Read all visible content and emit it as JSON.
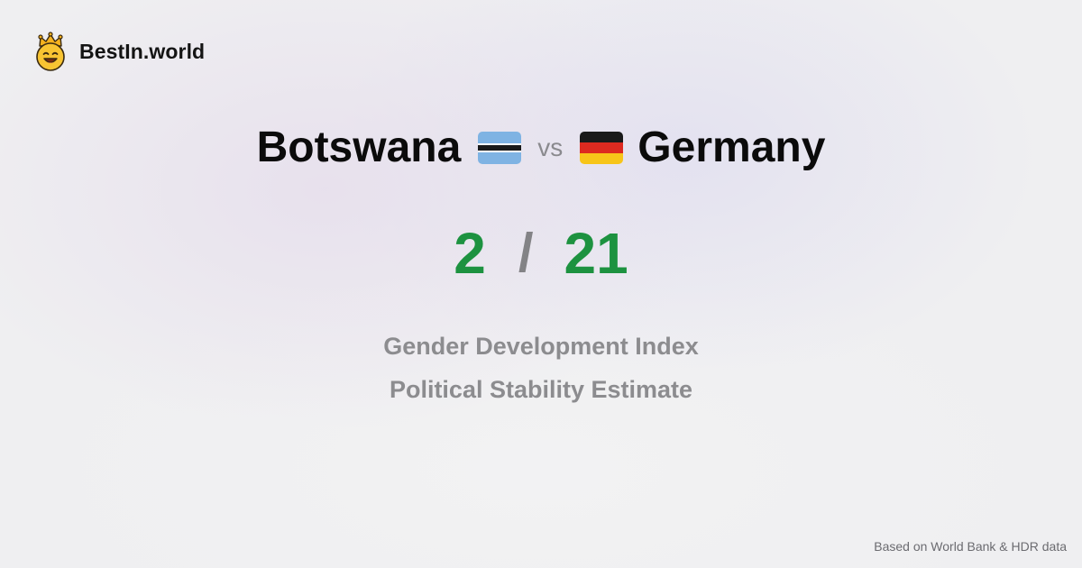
{
  "brand": {
    "name": "BestIn.world",
    "logo_icon": "crowned-smiley-icon",
    "logo_color": "#f5c02b"
  },
  "comparison": {
    "left_country": "Botswana",
    "left_flag": "botswana-flag-icon",
    "vs_label": "vs",
    "right_country": "Germany",
    "right_flag": "germany-flag-icon"
  },
  "score": {
    "left": "2",
    "separator": "/",
    "right": "21",
    "color": "#1d9240"
  },
  "metrics": [
    "Gender Development Index",
    "Political Stability Estimate"
  ],
  "footer": {
    "source": "Based on World Bank & HDR data"
  }
}
